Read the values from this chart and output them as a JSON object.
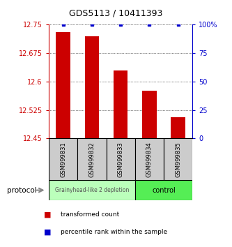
{
  "title": "GDS5113 / 10411393",
  "samples": [
    "GSM999831",
    "GSM999832",
    "GSM999833",
    "GSM999834",
    "GSM999835"
  ],
  "bar_values": [
    12.73,
    12.72,
    12.63,
    12.575,
    12.505
  ],
  "percentile_values": [
    100,
    100,
    100,
    100,
    100
  ],
  "ylim_left": [
    12.45,
    12.75
  ],
  "ylim_right": [
    0,
    100
  ],
  "yticks_left": [
    12.45,
    12.525,
    12.6,
    12.675,
    12.75
  ],
  "ytick_labels_left": [
    "12.45",
    "12.525",
    "12.6",
    "12.675",
    "12.75"
  ],
  "yticks_right": [
    0,
    25,
    50,
    75,
    100
  ],
  "ytick_labels_right": [
    "0",
    "25",
    "50",
    "75",
    "100%"
  ],
  "bar_color": "#cc0000",
  "percentile_color": "#0000cc",
  "group1_label": "Grainyhead-like 2 depletion",
  "group2_label": "control",
  "group1_color": "#bbffbb",
  "group2_color": "#55ee55",
  "protocol_label": "protocol",
  "legend_bar_label": "transformed count",
  "legend_pct_label": "percentile rank within the sample",
  "left_axis_color": "#cc0000",
  "right_axis_color": "#0000cc",
  "sample_box_color": "#cccccc"
}
